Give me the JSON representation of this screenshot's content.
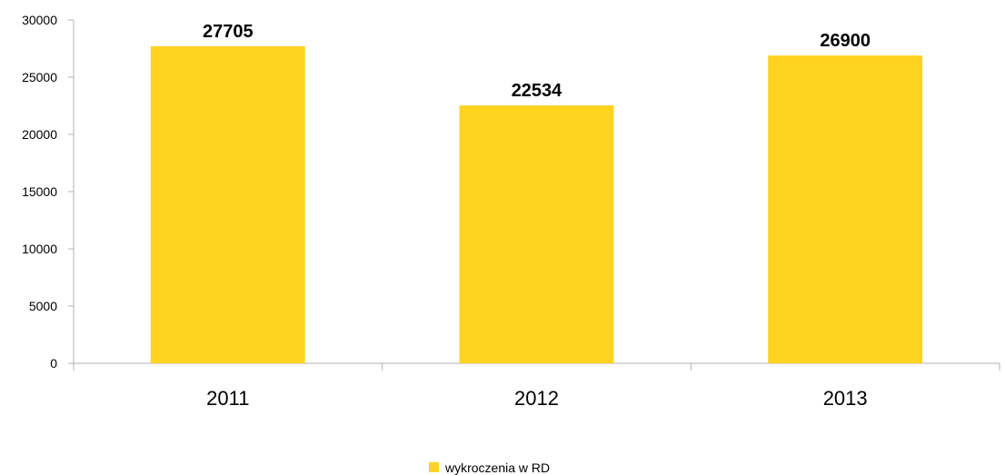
{
  "chart_data": {
    "type": "bar",
    "categories": [
      "2011",
      "2012",
      "2013"
    ],
    "series": [
      {
        "name": "wykroczenia w RD",
        "values": [
          27705,
          22534,
          26900
        ],
        "color": "#FFD320"
      }
    ],
    "data_labels": [
      "27705",
      "22534",
      "26900"
    ],
    "ylim": [
      0,
      30000
    ],
    "yticks": [
      "0",
      "5000",
      "10000",
      "15000",
      "20000",
      "25000",
      "30000"
    ],
    "grid": false,
    "legend_position": "bottom",
    "axis_color": "#B3B3B3"
  }
}
